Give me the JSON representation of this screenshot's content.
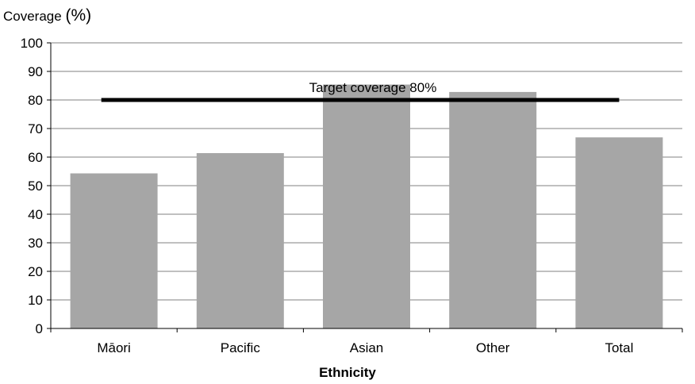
{
  "chart_data": {
    "type": "bar",
    "ylabel": "Coverage",
    "ylabel_unit": "(%)",
    "xlabel": "Ethnicity",
    "categories": [
      "Māori",
      "Pacific",
      "Asian",
      "Other",
      "Total"
    ],
    "values": [
      54.3,
      61.4,
      85.4,
      82.8,
      66.9
    ],
    "ylim": [
      0,
      100
    ],
    "yticks": [
      0,
      10,
      20,
      30,
      40,
      50,
      60,
      70,
      80,
      90,
      100
    ],
    "grid": true,
    "bar_color": "#a6a6a6",
    "target": {
      "value": 80,
      "label": "Target coverage 80%",
      "color": "#000000"
    }
  }
}
